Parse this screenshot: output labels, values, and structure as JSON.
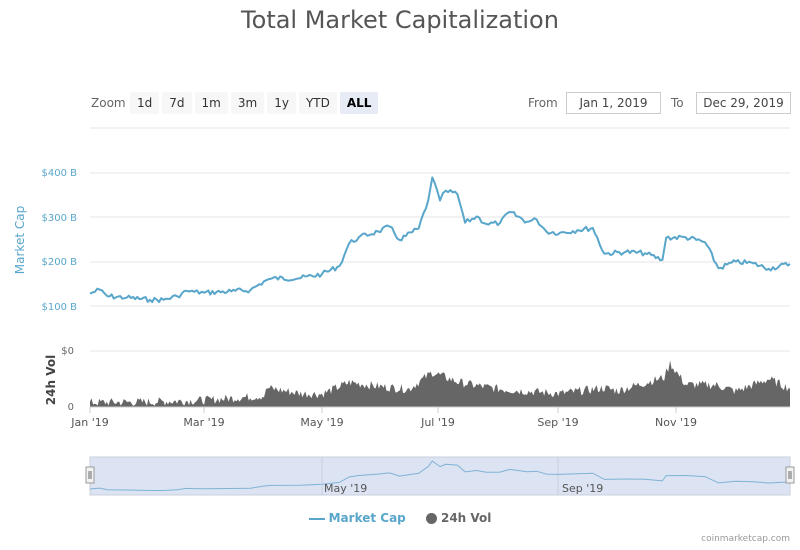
{
  "header": {
    "title": "Total Market Capitalization"
  },
  "toolbar": {
    "zoom_label": "Zoom",
    "zoom_options": [
      "1d",
      "7d",
      "1m",
      "3m",
      "1y",
      "YTD",
      "ALL"
    ],
    "active_zoom": "ALL",
    "from_label": "From",
    "from_value": "Jan 1, 2019",
    "to_label": "To",
    "to_value": "Dec 29, 2019"
  },
  "legend": {
    "market_cap_label": "Market Cap",
    "volume_label": "24h Vol"
  },
  "credit": "coinmarketcap.com",
  "colors": {
    "market_cap": "#59a6cb",
    "volume": "#666666",
    "navigator_fill": "#dce3f2"
  },
  "chart_data": {
    "type": "line",
    "x_ticks": [
      "Jan '19",
      "Mar '19",
      "May '19",
      "Jul '19",
      "Sep '19",
      "Nov '19"
    ],
    "navigator_ticks": [
      "May '19",
      "Sep '19"
    ],
    "market_cap": {
      "name": "Market Cap",
      "ylabel": "Market Cap",
      "y_ticks": [
        "$100 B",
        "$200 B",
        "$300 B",
        "$400 B"
      ],
      "ylim": [
        100,
        400
      ],
      "unit": "B USD",
      "points": [
        [
          "2019-01-01",
          128
        ],
        [
          "2019-01-06",
          137
        ],
        [
          "2019-01-10",
          122
        ],
        [
          "2019-01-20",
          119
        ],
        [
          "2019-02-01",
          114
        ],
        [
          "2019-02-08",
          114
        ],
        [
          "2019-02-15",
          122
        ],
        [
          "2019-02-20",
          134
        ],
        [
          "2019-02-24",
          132
        ],
        [
          "2019-03-01",
          130
        ],
        [
          "2019-03-15",
          133
        ],
        [
          "2019-03-25",
          136
        ],
        [
          "2019-04-02",
          158
        ],
        [
          "2019-04-05",
          162
        ],
        [
          "2019-04-20",
          163
        ],
        [
          "2019-05-01",
          172
        ],
        [
          "2019-05-10",
          190
        ],
        [
          "2019-05-15",
          241
        ],
        [
          "2019-05-20",
          255
        ],
        [
          "2019-05-30",
          268
        ],
        [
          "2019-06-05",
          279
        ],
        [
          "2019-06-10",
          249
        ],
        [
          "2019-06-20",
          275
        ],
        [
          "2019-06-25",
          340
        ],
        [
          "2019-06-27",
          390
        ],
        [
          "2019-07-01",
          338
        ],
        [
          "2019-07-04",
          360
        ],
        [
          "2019-07-10",
          352
        ],
        [
          "2019-07-14",
          288
        ],
        [
          "2019-07-20",
          302
        ],
        [
          "2019-07-25",
          285
        ],
        [
          "2019-08-01",
          287
        ],
        [
          "2019-08-06",
          312
        ],
        [
          "2019-08-15",
          290
        ],
        [
          "2019-08-20",
          295
        ],
        [
          "2019-08-25",
          268
        ],
        [
          "2019-09-01",
          265
        ],
        [
          "2019-09-10",
          271
        ],
        [
          "2019-09-18",
          276
        ],
        [
          "2019-09-24",
          218
        ],
        [
          "2019-10-05",
          222
        ],
        [
          "2019-10-15",
          219
        ],
        [
          "2019-10-24",
          204
        ],
        [
          "2019-10-26",
          254
        ],
        [
          "2019-11-05",
          255
        ],
        [
          "2019-11-15",
          244
        ],
        [
          "2019-11-22",
          185
        ],
        [
          "2019-12-01",
          200
        ],
        [
          "2019-12-10",
          196
        ],
        [
          "2019-12-18",
          184
        ],
        [
          "2019-12-29",
          195
        ]
      ]
    },
    "volume": {
      "name": "24h Vol",
      "ylabel": "24h Vol",
      "y_ticks": [
        "0",
        "$0"
      ],
      "points": [
        [
          "2019-01-01",
          8
        ],
        [
          "2019-02-01",
          9
        ],
        [
          "2019-03-01",
          12
        ],
        [
          "2019-04-01",
          20
        ],
        [
          "2019-04-03",
          34
        ],
        [
          "2019-04-20",
          24
        ],
        [
          "2019-05-01",
          23
        ],
        [
          "2019-05-15",
          44
        ],
        [
          "2019-06-01",
          36
        ],
        [
          "2019-06-15",
          32
        ],
        [
          "2019-06-27",
          62
        ],
        [
          "2019-07-10",
          45
        ],
        [
          "2019-07-20",
          38
        ],
        [
          "2019-08-01",
          32
        ],
        [
          "2019-08-15",
          28
        ],
        [
          "2019-09-01",
          24
        ],
        [
          "2019-09-24",
          34
        ],
        [
          "2019-10-01",
          29
        ],
        [
          "2019-10-25",
          53
        ],
        [
          "2019-10-28",
          78
        ],
        [
          "2019-11-05",
          40
        ],
        [
          "2019-11-21",
          39
        ],
        [
          "2019-11-25",
          35
        ],
        [
          "2019-12-01",
          28
        ],
        [
          "2019-12-18",
          50
        ],
        [
          "2019-12-29",
          33
        ]
      ]
    }
  }
}
